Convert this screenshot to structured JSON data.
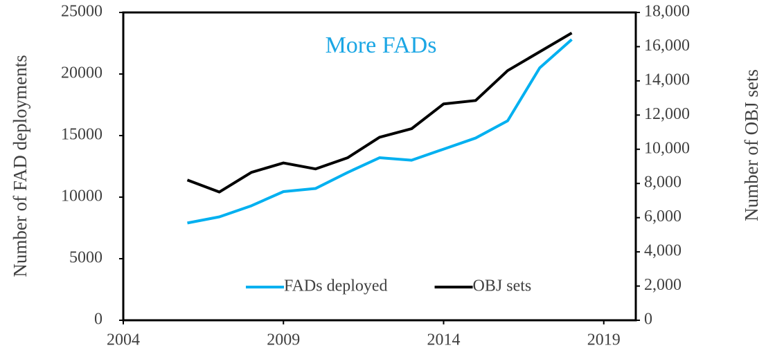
{
  "chart_data": {
    "type": "line",
    "annotation": "More FADs",
    "annotation_color": "#1ba6e4",
    "ylabel": "Number of FAD deployments",
    "y2label": "Number of OBJ sets",
    "x": [
      2006,
      2007,
      2008,
      2009,
      2010,
      2011,
      2012,
      2013,
      2014,
      2015,
      2016,
      2017,
      2018
    ],
    "series": [
      {
        "name": "FADs deployed",
        "color": "#00b0f0",
        "values": [
          7900,
          8400,
          9300,
          10450,
          10700,
          12000,
          13200,
          13000,
          13900,
          14800,
          16200,
          20500,
          22800
        ]
      },
      {
        "name": "OBJ sets",
        "color": "#000000",
        "axis": "y2",
        "values": [
          8200,
          7500,
          8650,
          9200,
          8850,
          9500,
          10700,
          11200,
          12650,
          12850,
          14600,
          15700,
          16800
        ]
      }
    ],
    "xlim": [
      2004,
      2020
    ],
    "xticks": [
      2004,
      2009,
      2014,
      2019
    ],
    "ylim": [
      0,
      25000
    ],
    "yticks": [
      0,
      5000,
      10000,
      15000,
      20000,
      25000
    ],
    "y2lim": [
      0,
      18000
    ],
    "y2ticks": [
      0,
      {
        "value": 2000,
        "label": "2,000"
      },
      {
        "value": 4000,
        "label": "4,000"
      },
      {
        "value": 6000,
        "label": "6,000"
      },
      {
        "value": 8000,
        "label": "8,000"
      },
      {
        "value": 10000,
        "label": "10,000"
      },
      {
        "value": 12000,
        "label": "12,000"
      },
      {
        "value": 14000,
        "label": "14,000"
      },
      {
        "value": 16000,
        "label": "16,000"
      },
      {
        "value": 18000,
        "label": "18,000"
      }
    ],
    "legend": "lower right",
    "grid": false
  }
}
